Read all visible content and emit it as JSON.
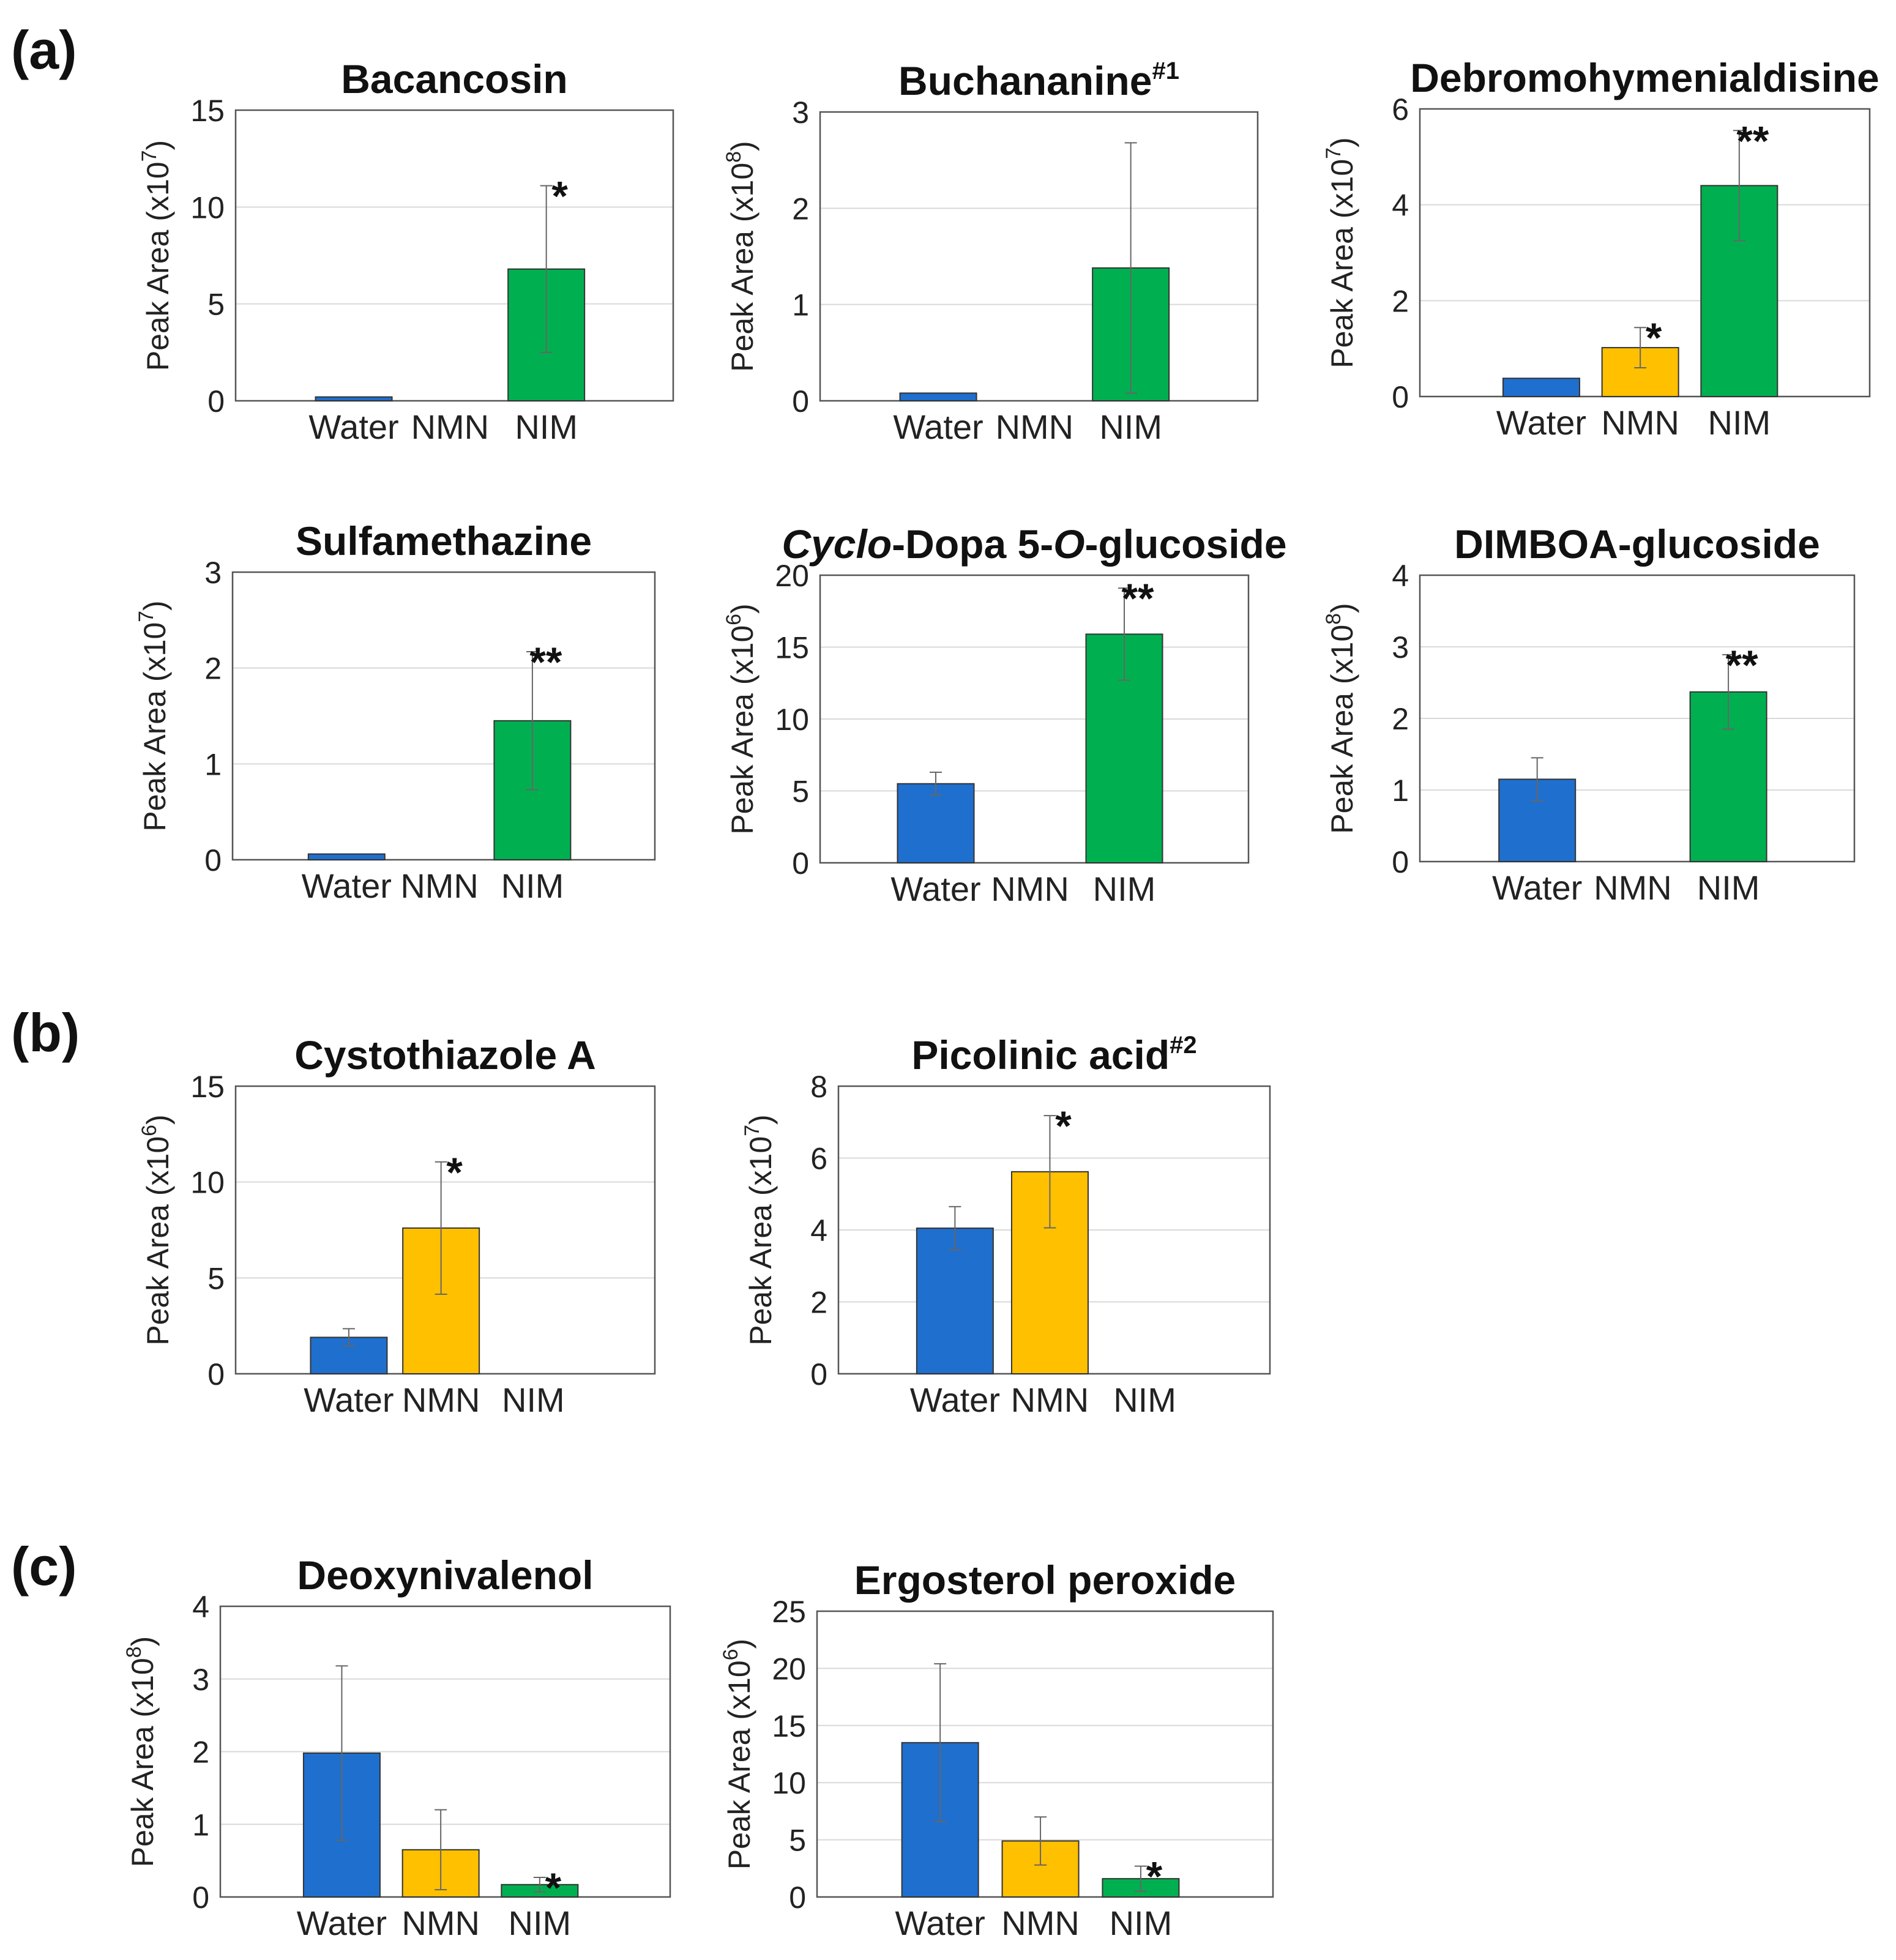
{
  "colors": {
    "Water": "#1f6fce",
    "NMN": "#ffc000",
    "NIM": "#00b050"
  },
  "panel_labels": [
    "(a)",
    "(b)",
    "(c)"
  ],
  "chart_data": [
    {
      "type": "bar",
      "title": "Bacancosin",
      "ylabel_prefix": "Peak Area (x10",
      "ylabel_exp": "7",
      "ylabel_suffix": ")",
      "categories": [
        "Water",
        "NMN",
        "NIM"
      ],
      "values": [
        0.2,
        0,
        6.8
      ],
      "errors": [
        0,
        0,
        4.3
      ],
      "significance": [
        "",
        "",
        "*"
      ],
      "ylim": [
        0,
        15
      ],
      "yticks": [
        0,
        5,
        10,
        15
      ]
    },
    {
      "type": "bar",
      "title": "Buchananine",
      "title_sup": "#1",
      "ylabel_prefix": "Peak Area (x10",
      "ylabel_exp": "8",
      "ylabel_suffix": ")",
      "categories": [
        "Water",
        "NMN",
        "NIM"
      ],
      "values": [
        0.08,
        0,
        1.38
      ],
      "errors": [
        0,
        0,
        1.3
      ],
      "significance": [
        "",
        "",
        ""
      ],
      "ylim": [
        0,
        3
      ],
      "yticks": [
        0,
        1,
        2,
        3
      ]
    },
    {
      "type": "bar",
      "title": "Debromohymenialdisine",
      "ylabel_prefix": "Peak Area (x10",
      "ylabel_exp": "7",
      "ylabel_suffix": ")",
      "categories": [
        "Water",
        "NMN",
        "NIM"
      ],
      "values": [
        0.38,
        1.02,
        4.4
      ],
      "errors": [
        0,
        0.42,
        1.15
      ],
      "significance": [
        "",
        "*",
        "**"
      ],
      "ylim": [
        0,
        6
      ],
      "yticks": [
        0,
        2,
        4,
        6
      ]
    },
    {
      "type": "bar",
      "title": "Sulfamethazine",
      "ylabel_prefix": "Peak Area (x10",
      "ylabel_exp": "7",
      "ylabel_suffix": ")",
      "categories": [
        "Water",
        "NMN",
        "NIM"
      ],
      "values": [
        0.06,
        0,
        1.45
      ],
      "errors": [
        0,
        0,
        0.72
      ],
      "significance": [
        "",
        "",
        "**"
      ],
      "ylim": [
        0,
        3
      ],
      "yticks": [
        0,
        1,
        2,
        3
      ]
    },
    {
      "type": "bar",
      "title_italic": "Cyclo",
      "title": "-Dopa 5-",
      "title_italic2": "O",
      "title_rest": "-glucoside",
      "ylabel_prefix": "Peak Area (x10",
      "ylabel_exp": "6",
      "ylabel_suffix": ")",
      "categories": [
        "Water",
        "NMN",
        "NIM"
      ],
      "values": [
        5.5,
        0,
        15.9
      ],
      "errors": [
        0.8,
        0,
        3.2
      ],
      "significance": [
        "",
        "",
        "**"
      ],
      "ylim": [
        0,
        20
      ],
      "yticks": [
        0,
        5,
        10,
        15,
        20
      ]
    },
    {
      "type": "bar",
      "title": "DIMBOA-glucoside",
      "ylabel_prefix": "Peak Area (x10",
      "ylabel_exp": "8",
      "ylabel_suffix": ")",
      "categories": [
        "Water",
        "NMN",
        "NIM"
      ],
      "values": [
        1.15,
        0,
        2.37
      ],
      "errors": [
        0.3,
        0,
        0.52
      ],
      "significance": [
        "",
        "",
        "**"
      ],
      "ylim": [
        0,
        4
      ],
      "yticks": [
        0,
        1,
        2,
        3,
        4
      ]
    },
    {
      "type": "bar",
      "title": "Cystothiazole A",
      "ylabel_prefix": "Peak Area (x10",
      "ylabel_exp": "6",
      "ylabel_suffix": ")",
      "categories": [
        "Water",
        "NMN",
        "NIM"
      ],
      "values": [
        1.9,
        7.6,
        0
      ],
      "errors": [
        0.45,
        3.45,
        0
      ],
      "significance": [
        "",
        "*",
        ""
      ],
      "ylim": [
        0,
        15
      ],
      "yticks": [
        0,
        5,
        10,
        15
      ]
    },
    {
      "type": "bar",
      "title": "Picolinic acid",
      "title_sup": "#2",
      "ylabel_prefix": "Peak Area (x10",
      "ylabel_exp": "7",
      "ylabel_suffix": ")",
      "categories": [
        "Water",
        "NMN",
        "NIM"
      ],
      "values": [
        4.05,
        5.62,
        0
      ],
      "errors": [
        0.6,
        1.56,
        0
      ],
      "significance": [
        "",
        "*",
        ""
      ],
      "ylim": [
        0,
        8
      ],
      "yticks": [
        0,
        2,
        4,
        6,
        8
      ]
    },
    {
      "type": "bar",
      "title": "Deoxynivalenol",
      "ylabel_prefix": "Peak Area (x10",
      "ylabel_exp": "8",
      "ylabel_suffix": ")",
      "categories": [
        "Water",
        "NMN",
        "NIM"
      ],
      "values": [
        1.98,
        0.65,
        0.17
      ],
      "errors": [
        1.2,
        0.55,
        0.1
      ],
      "significance": [
        "",
        "",
        "*"
      ],
      "ylim": [
        0,
        4
      ],
      "yticks": [
        0,
        1,
        2,
        3,
        4
      ]
    },
    {
      "type": "bar",
      "title": "Ergosterol peroxide",
      "ylabel_prefix": "Peak Area (x10",
      "ylabel_exp": "6",
      "ylabel_suffix": ")",
      "categories": [
        "Water",
        "NMN",
        "NIM"
      ],
      "values": [
        13.5,
        4.9,
        1.6
      ],
      "errors": [
        6.9,
        2.1,
        1.1
      ],
      "significance": [
        "",
        "",
        "*"
      ],
      "ylim": [
        0,
        25
      ],
      "yticks": [
        0,
        5,
        10,
        15,
        20,
        25
      ]
    }
  ]
}
